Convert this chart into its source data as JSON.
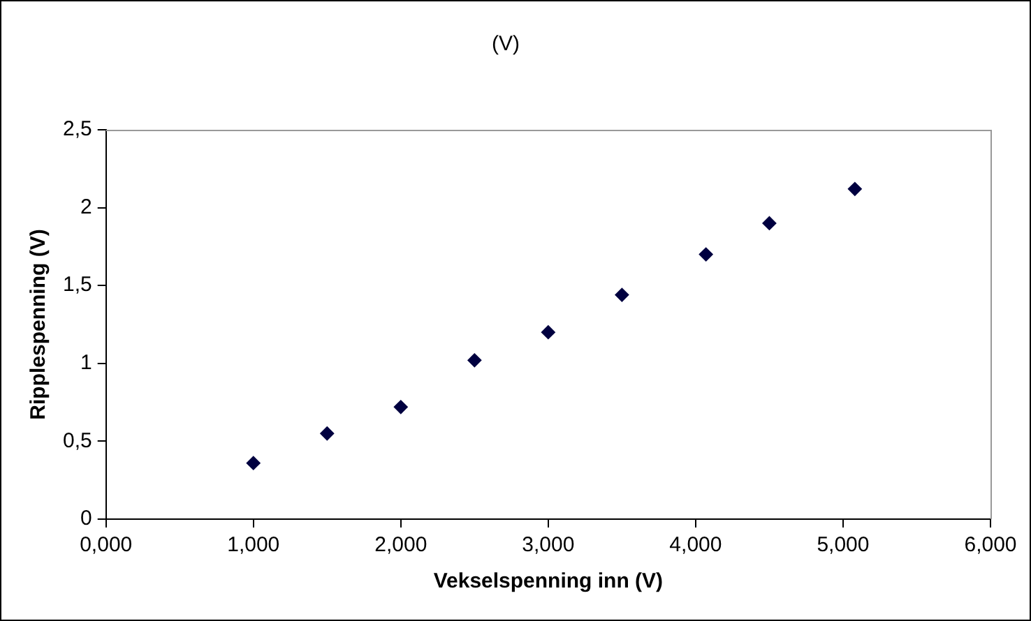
{
  "chart_data": {
    "type": "scatter",
    "title": "(V)",
    "xlabel": "Vekselspenning inn (V)",
    "ylabel": "Ripplespenning (V)",
    "x": [
      1.0,
      1.5,
      2.0,
      2.5,
      3.0,
      3.5,
      4.07,
      4.5,
      5.08
    ],
    "series": [
      {
        "color": "#000040",
        "values": [
          0.36,
          0.55,
          0.72,
          1.02,
          1.2,
          1.44,
          1.7,
          1.9,
          2.12
        ]
      }
    ],
    "xlim": [
      0,
      6
    ],
    "xticks": [
      {
        "value": 0,
        "label": "0,000"
      },
      {
        "value": 1,
        "label": "1,000"
      },
      {
        "value": 2,
        "label": "2,000"
      },
      {
        "value": 3,
        "label": "3,000"
      },
      {
        "value": 4,
        "label": "4,000"
      },
      {
        "value": 5,
        "label": "5,000"
      },
      {
        "value": 6,
        "label": "6,000"
      }
    ],
    "ylim": [
      0,
      2.5
    ],
    "yticks": [
      0,
      {
        "value": 0.5,
        "label": "0,5"
      },
      1,
      {
        "value": 1.5,
        "label": "1,5"
      },
      2,
      {
        "value": 2.5,
        "label": "2,5"
      }
    ],
    "grid": false,
    "legend": false,
    "marker": "diamond"
  }
}
